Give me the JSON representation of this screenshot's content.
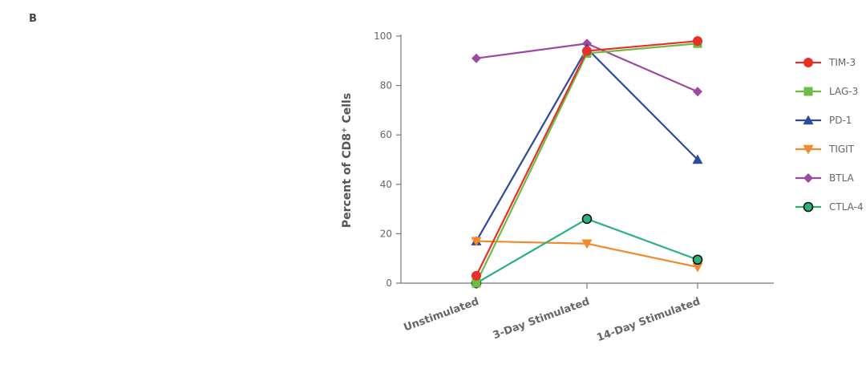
{
  "panel_label": "B",
  "chart_data": {
    "type": "line",
    "title": "",
    "xlabel": "",
    "ylabel_main": "Percent of CD8",
    "ylabel_sup": "+",
    "ylabel_tail": " Cells",
    "categories": [
      "Unstimulated",
      "3-Day Stimulated",
      "14-Day Stimulated"
    ],
    "yticks": [
      "0",
      "20",
      "40",
      "60",
      "80",
      "100"
    ],
    "ylim": [
      0,
      100
    ],
    "legend_position": "right",
    "grid": false,
    "series": [
      {
        "name": "BTLA",
        "values": [
          91,
          97,
          77.5
        ],
        "color": "#9b4aa0",
        "marker": "diamond"
      },
      {
        "name": "PD-1",
        "values": [
          17,
          95,
          50
        ],
        "color": "#2e4a9a",
        "marker": "triangle-up"
      },
      {
        "name": "TIGIT",
        "values": [
          17,
          16,
          6.5
        ],
        "color": "#f08a2c",
        "marker": "triangle-down"
      },
      {
        "name": "CTLA-4",
        "values": [
          0,
          26,
          9.5
        ],
        "color": "#2bb27a",
        "marker": "circle-outline"
      },
      {
        "name": "LAG-3",
        "values": [
          0,
          93,
          97
        ],
        "color": "#6cbd45",
        "marker": "square"
      },
      {
        "name": "TIM-3",
        "values": [
          3,
          94,
          98
        ],
        "color": "#e8302b",
        "marker": "circle"
      }
    ],
    "legend_order": [
      "TIM-3",
      "LAG-3",
      "PD-1",
      "TIGIT",
      "BTLA",
      "CTLA-4"
    ]
  }
}
